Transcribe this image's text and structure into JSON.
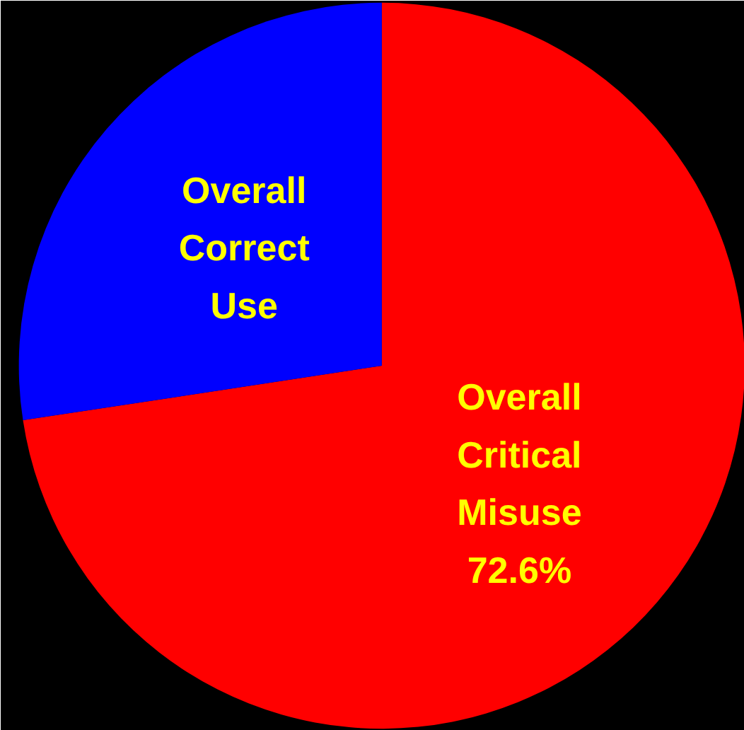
{
  "chart_data": {
    "type": "pie",
    "categories": [
      "Overall Critical Misuse",
      "Overall Correct Use"
    ],
    "values": [
      72.6,
      27.4
    ],
    "colors": [
      "#ff0000",
      "#0000ff"
    ],
    "value_labels": [
      "72.6%",
      null
    ]
  }
}
